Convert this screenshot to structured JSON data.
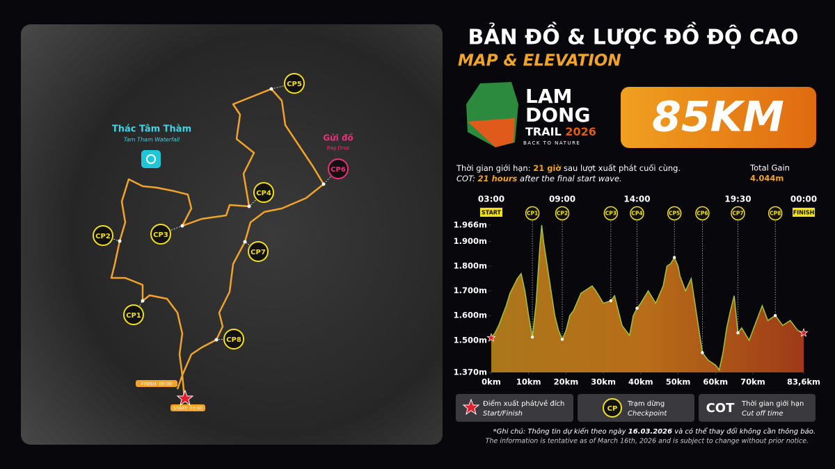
{
  "header": {
    "title": "BẢN ĐỒ & LƯỢC ĐỒ ĐỘ CAO",
    "subtitle": "MAP & ELEVATION"
  },
  "logo": {
    "line1": "LAM",
    "line2": "DONG",
    "trail": "TRAIL",
    "year": "2026",
    "tagline": "BACK TO NATURE"
  },
  "distance": "85KM",
  "map": {
    "checkpoints": [
      "CP1",
      "CP2",
      "CP3",
      "CP4",
      "CP5",
      "CP6",
      "CP7",
      "CP8"
    ],
    "waterfall": {
      "name": "Thác Tâm Thàm",
      "name_en": "Tam Tham Waterfall"
    },
    "bag_drop": {
      "name": "Gửi đồ",
      "name_en": "Bag Drop"
    },
    "finish": "FINISH: 00:00",
    "start": "START: 03:00"
  },
  "info": {
    "limit_prefix": "Thời gian giới hạn: ",
    "limit_hours": "21 giờ",
    "limit_suffix": " sau lượt xuất phát cuối cùng.",
    "cot_prefix": "COT: ",
    "cot_hours": "21 hours",
    "cot_suffix": " after the final start wave.",
    "gain_label": "Total Gain",
    "gain_value": "4.044m"
  },
  "chart_data": {
    "type": "area",
    "x": [
      0,
      1,
      2,
      3,
      4,
      5,
      6,
      7,
      8,
      9,
      10,
      11,
      12,
      13,
      13.5,
      14,
      15,
      16,
      17,
      18,
      19,
      20,
      21,
      22,
      24,
      26,
      27,
      28,
      30,
      32,
      33,
      35,
      37,
      38,
      39,
      40,
      42,
      44,
      46,
      47,
      48,
      49,
      50,
      50.5,
      52,
      53.5,
      55,
      56.5,
      58,
      60,
      61,
      62,
      63,
      64,
      65,
      66,
      67,
      69,
      71,
      72.5,
      74,
      76,
      78,
      80,
      82,
      83.6
    ],
    "series": [
      {
        "color": "#a4c43a",
        "values": [
          1510,
          1530,
          1560,
          1600,
          1640,
          1690,
          1720,
          1750,
          1770,
          1700,
          1600,
          1513,
          1650,
          1880,
          1966,
          1900,
          1800,
          1700,
          1600,
          1540,
          1504,
          1540,
          1600,
          1620,
          1690,
          1710,
          1720,
          1700,
          1650,
          1660,
          1680,
          1560,
          1520,
          1600,
          1630,
          1650,
          1700,
          1650,
          1720,
          1800,
          1810,
          1835,
          1800,
          1760,
          1700,
          1750,
          1600,
          1450,
          1420,
          1400,
          1380,
          1450,
          1550,
          1620,
          1680,
          1530,
          1550,
          1500,
          1580,
          1640,
          1580,
          1600,
          1560,
          1580,
          1540,
          1530
        ]
      }
    ],
    "xlim": [
      0,
      83.6
    ],
    "ylim": [
      1370,
      1966
    ],
    "xticks": [
      {
        "value": 0,
        "label": "0km"
      },
      {
        "value": 10,
        "label": "10km"
      },
      {
        "value": 20,
        "label": "20km"
      },
      {
        "value": 30,
        "label": "30km"
      },
      {
        "value": 40,
        "label": "40km"
      },
      {
        "value": 50,
        "label": "50km"
      },
      {
        "value": 60,
        "label": "60km"
      },
      {
        "value": 70,
        "label": "70km"
      },
      {
        "value": 83.6,
        "label": "83,6km"
      }
    ],
    "yticks": [
      {
        "value": 1370,
        "label": "1.370m"
      },
      {
        "value": 1500,
        "label": "1.500m"
      },
      {
        "value": 1600,
        "label": "1.600m"
      },
      {
        "value": 1700,
        "label": "1.700m"
      },
      {
        "value": 1800,
        "label": "1.800m"
      },
      {
        "value": 1900,
        "label": "1.900m"
      },
      {
        "value": 1966,
        "label": "1.966m"
      }
    ],
    "time_ticks": [
      {
        "value": 0,
        "label": "03:00"
      },
      {
        "value": 19,
        "label": "09:00"
      },
      {
        "value": 39,
        "label": "14:00"
      },
      {
        "value": 66,
        "label": "19:30"
      },
      {
        "value": 83.6,
        "label": "00:00"
      }
    ],
    "start_label": "START",
    "finish_label": "FINISH",
    "checkpoints": {
      "labels": [
        "CP1",
        "CP2",
        "CP3",
        "CP4",
        "CP5",
        "CP6",
        "CP7",
        "CP8"
      ],
      "x": [
        11,
        19,
        32,
        39,
        49,
        56.5,
        66,
        76
      ]
    }
  },
  "legend": [
    {
      "title": "Điểm xuất phát/về đích",
      "subtitle": "Start/Finish"
    },
    {
      "icon": "CP",
      "title": "Trạm dừng",
      "subtitle": "Checkpoint"
    },
    {
      "icon": "COT",
      "title": "Thời gian giới hạn",
      "subtitle": "Cut off time"
    }
  ],
  "note": {
    "prefix": "*Ghi chú: Thông tin dự kiến theo ngày ",
    "date": "16.03.2026",
    "suffix": " và có thể thay đổi không cần thông báo.",
    "english": "The information is tentative as of March 16th, 2026 and is subject to change without prior notice."
  }
}
